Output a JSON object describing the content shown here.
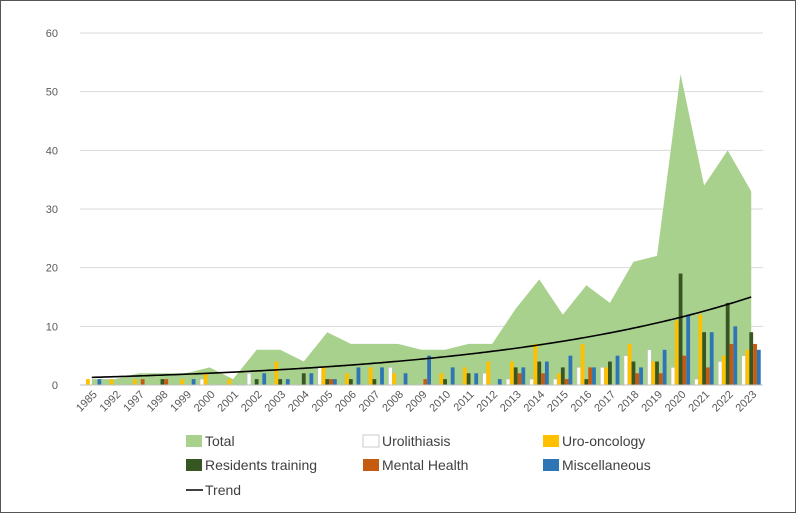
{
  "chart_data": {
    "type": "bar",
    "categories": [
      "1985",
      "1992",
      "1997",
      "1998",
      "1999",
      "2000",
      "2001",
      "2002",
      "2003",
      "2004",
      "2005",
      "2006",
      "2007",
      "2008",
      "2009",
      "2010",
      "2011",
      "2012",
      "2013",
      "2014",
      "2015",
      "2016",
      "2017",
      "2018",
      "2019",
      "2020",
      "2021",
      "2022",
      "2023"
    ],
    "ylim": [
      0,
      60
    ],
    "yticks": [
      0,
      10,
      20,
      30,
      40,
      50,
      60
    ],
    "grid": true,
    "legend_position": "bottom",
    "series": [
      {
        "name": "Total",
        "kind": "area",
        "color": "#a9d18e",
        "values": [
          1,
          1,
          2,
          2,
          2,
          3,
          1,
          6,
          6,
          4,
          9,
          7,
          7,
          7,
          6,
          6,
          7,
          7,
          13,
          18,
          12,
          17,
          14,
          21,
          22,
          53,
          34,
          40,
          33
        ]
      },
      {
        "name": "Urolithiasis",
        "kind": "bar",
        "color": "#ffffff",
        "values": [
          0,
          0,
          0,
          0,
          0,
          1,
          0,
          2,
          0,
          0,
          3,
          0,
          0,
          3,
          0,
          0,
          0,
          2,
          1,
          1,
          1,
          3,
          3,
          5,
          6,
          3,
          1,
          4,
          5
        ]
      },
      {
        "name": "Uro-oncology",
        "kind": "bar",
        "color": "#ffc000",
        "values": [
          1,
          1,
          1,
          0,
          1,
          2,
          1,
          0,
          4,
          0,
          3,
          2,
          3,
          2,
          0,
          2,
          3,
          4,
          4,
          7,
          2,
          7,
          3,
          7,
          4,
          11,
          12,
          5,
          6
        ]
      },
      {
        "name": "Residents training",
        "kind": "bar",
        "color": "#375623",
        "values": [
          0,
          0,
          0,
          1,
          0,
          0,
          0,
          1,
          1,
          2,
          1,
          1,
          1,
          0,
          0,
          1,
          2,
          0,
          3,
          4,
          3,
          1,
          4,
          4,
          4,
          19,
          9,
          14,
          9
        ]
      },
      {
        "name": "Mental Health",
        "kind": "bar",
        "color": "#c55a11",
        "values": [
          0,
          0,
          1,
          1,
          0,
          0,
          0,
          0,
          0,
          0,
          1,
          0,
          0,
          0,
          1,
          0,
          0,
          0,
          2,
          2,
          1,
          3,
          0,
          2,
          2,
          5,
          3,
          7,
          7
        ]
      },
      {
        "name": "Miscellaneous",
        "kind": "bar",
        "color": "#2e75b6",
        "values": [
          1,
          0,
          0,
          0,
          1,
          0,
          0,
          2,
          1,
          2,
          1,
          3,
          3,
          2,
          5,
          3,
          2,
          1,
          3,
          4,
          5,
          3,
          5,
          3,
          6,
          12,
          9,
          10,
          6
        ]
      },
      {
        "name": "Trend",
        "kind": "line",
        "color": "#000000",
        "values": [
          1.3,
          1.4,
          1.5,
          1.6,
          1.7,
          1.9,
          2.0,
          2.2,
          2.4,
          2.6,
          2.9,
          3.2,
          3.5,
          3.8,
          4.2,
          4.6,
          5.0,
          5.5,
          6.0,
          6.6,
          7.2,
          7.9,
          8.7,
          9.5,
          10.4,
          11.4,
          12.5,
          13.7,
          15.0
        ]
      }
    ]
  }
}
